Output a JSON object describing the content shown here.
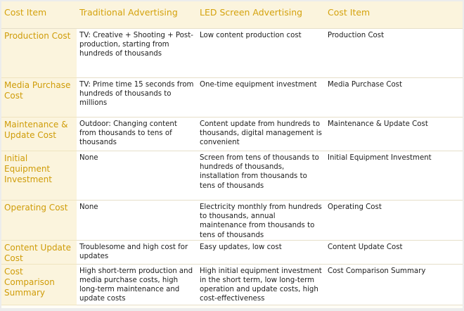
{
  "table": {
    "headers": [
      "Cost Item",
      "Traditional Advertising",
      "LED Screen Advertising",
      "Cost Item"
    ],
    "rows": [
      {
        "item": "Production Cost",
        "traditional": "TV: Creative + Shooting + Post-production, starting from hundreds of thousands",
        "led": "Low content production cost",
        "cost_item": "Production Cost"
      },
      {
        "item": "Media Purchase Cost",
        "traditional": "TV: Prime time 15 seconds from hundreds of thousands to millions",
        "led": "One-time equipment investment",
        "cost_item": "Media Purchase Cost"
      },
      {
        "item": "Maintenance & Update Cost",
        "traditional": "Outdoor: Changing content from thousands to tens of thousands",
        "led": "Content update from hundreds to thousands, digital management is convenient",
        "cost_item": "Maintenance & Update Cost"
      },
      {
        "item": "Initial Equipment Investment",
        "traditional": "None",
        "led": "Screen from tens of thousands to hundreds of thousands, installation from thousands to tens of thousands",
        "cost_item": "Initial Equipment Investment"
      },
      {
        "item": "Operating Cost",
        "traditional": "None",
        "led": "Electricity monthly from hundreds to thousands, annual maintenance from thousands to tens of thousands",
        "cost_item": "Operating Cost"
      },
      {
        "item": "Content Update Cost",
        "traditional": "Troublesome and high cost for updates",
        "led": "Easy updates, low cost",
        "cost_item": "Content Update Cost"
      },
      {
        "item": "Cost Comparison Summary",
        "traditional": "High short-term production and media purchase costs, high long-term maintenance and update costs",
        "led": "High initial equipment investment in the short term, low long-term operation and update costs, high cost-effectiveness",
        "cost_item": "Cost Comparison Summary"
      }
    ]
  }
}
